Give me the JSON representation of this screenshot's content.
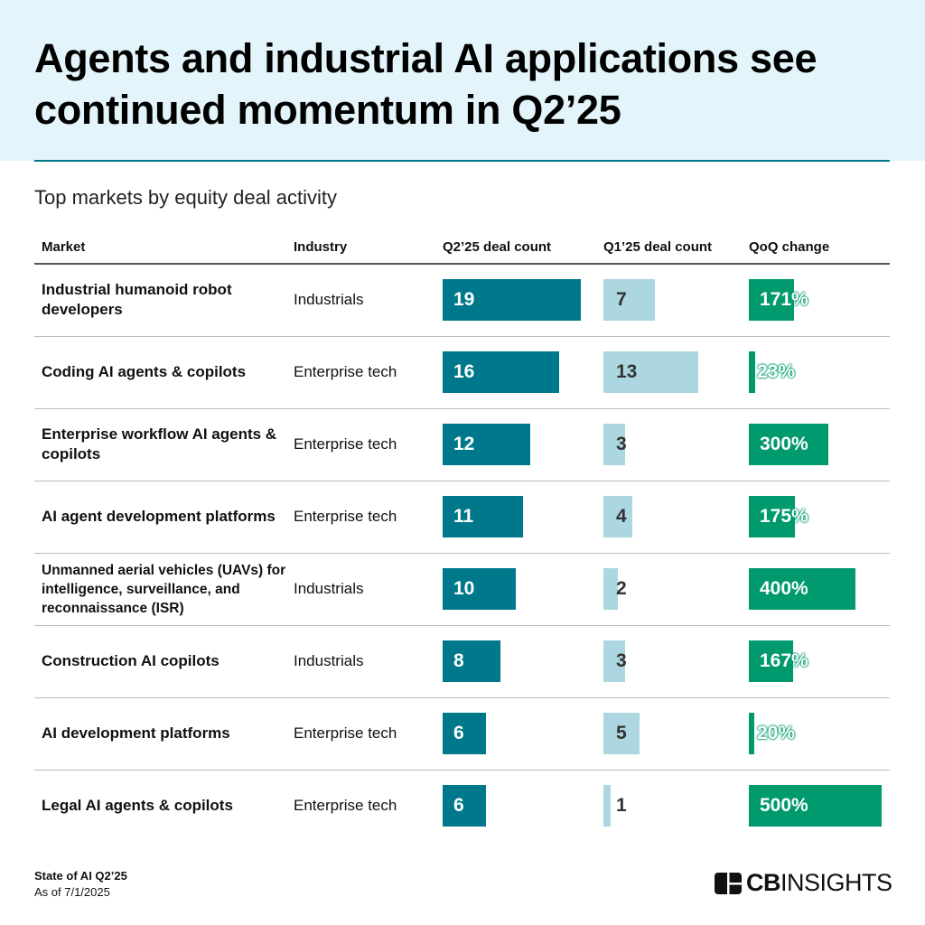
{
  "title": "Agents and industrial AI applications see continued momentum in Q2’25",
  "subtitle": "Top markets by equity deal activity",
  "colors": {
    "q2": "#00788c",
    "q1": "#acd7e0",
    "qoq": "#009a6e",
    "header_band": "#e3f5fa"
  },
  "chart_data": {
    "type": "table",
    "columns": [
      "Market",
      "Industry",
      "Q2’25 deal count",
      "Q1’25 deal count",
      "QoQ change"
    ],
    "rows": [
      {
        "market": "Industrial humanoid robot developers",
        "industry": "Industrials",
        "q2": 19,
        "q1": 7,
        "qoq": 171,
        "qoq_label": "171%"
      },
      {
        "market": "Coding AI agents & copilots",
        "industry": "Enterprise tech",
        "q2": 16,
        "q1": 13,
        "qoq": 23,
        "qoq_label": "23%"
      },
      {
        "market": "Enterprise workflow AI agents & copilots",
        "industry": "Enterprise tech",
        "q2": 12,
        "q1": 3,
        "qoq": 300,
        "qoq_label": "300%"
      },
      {
        "market": "AI agent development platforms",
        "industry": "Enterprise tech",
        "q2": 11,
        "q1": 4,
        "qoq": 175,
        "qoq_label": "175%"
      },
      {
        "market": "Unmanned aerial vehicles (UAVs) for intelligence, surveillance, and reconnaissance (ISR)",
        "industry": "Industrials",
        "q2": 10,
        "q1": 2,
        "qoq": 400,
        "qoq_label": "400%"
      },
      {
        "market": "Construction AI copilots",
        "industry": "Industrials",
        "q2": 8,
        "q1": 3,
        "qoq": 167,
        "qoq_label": "167%"
      },
      {
        "market": "AI development platforms",
        "industry": "Enterprise tech",
        "q2": 6,
        "q1": 5,
        "qoq": 20,
        "qoq_label": "20%"
      },
      {
        "market": "Legal AI agents & copilots",
        "industry": "Enterprise tech",
        "q2": 6,
        "q1": 1,
        "qoq": 500,
        "qoq_label": "500%"
      }
    ]
  },
  "footer": {
    "source": "State of AI Q2’25",
    "date": "As of 7/1/2025"
  },
  "logo": {
    "text_bold": "CB",
    "text_light": "INSIGHTS"
  }
}
